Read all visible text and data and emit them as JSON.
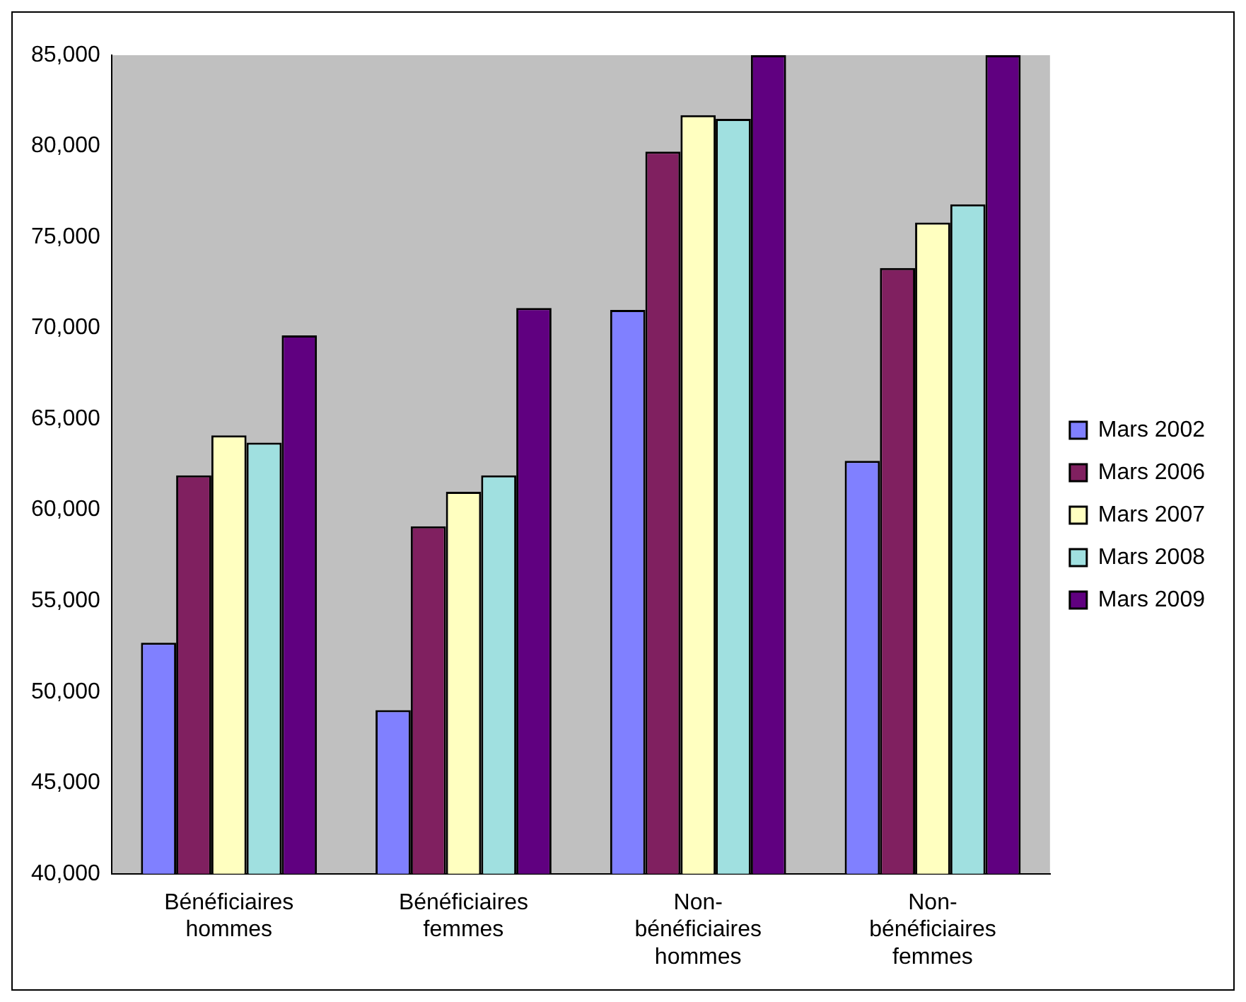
{
  "chart_data": {
    "type": "bar",
    "categories": [
      "Bénéficiaires hommes",
      "Bénéficiaires femmes",
      "Non-bénéficiaires hommes",
      "Non-bénéficiaires femmes"
    ],
    "series": [
      {
        "name": "Mars 2002",
        "color": "#8080ff",
        "values": [
          52700,
          49000,
          71000,
          62700
        ]
      },
      {
        "name": "Mars 2006",
        "color": "#802060",
        "values": [
          61900,
          59100,
          79700,
          73300
        ]
      },
      {
        "name": "Mars 2007",
        "color": "#ffffc0",
        "values": [
          64100,
          61000,
          81700,
          75800
        ]
      },
      {
        "name": "Mars 2008",
        "color": "#a0e0e0",
        "values": [
          63700,
          61900,
          81500,
          76800
        ]
      },
      {
        "name": "Mars 2009",
        "color": "#600080",
        "values": [
          69600,
          71100,
          85000,
          85000
        ]
      }
    ],
    "ylim": [
      40000,
      85000
    ],
    "yticks": [
      {
        "value": 40000,
        "label": "40,000"
      },
      {
        "value": 45000,
        "label": "45,000"
      },
      {
        "value": 50000,
        "label": "50,000"
      },
      {
        "value": 55000,
        "label": "55,000"
      },
      {
        "value": 60000,
        "label": "60,000"
      },
      {
        "value": 65000,
        "label": "65,000"
      },
      {
        "value": 70000,
        "label": "70,000"
      },
      {
        "value": 75000,
        "label": "75,000"
      },
      {
        "value": 80000,
        "label": "80,000"
      },
      {
        "value": 85000,
        "label": "85,000"
      }
    ],
    "grid": false,
    "legend": "right"
  }
}
